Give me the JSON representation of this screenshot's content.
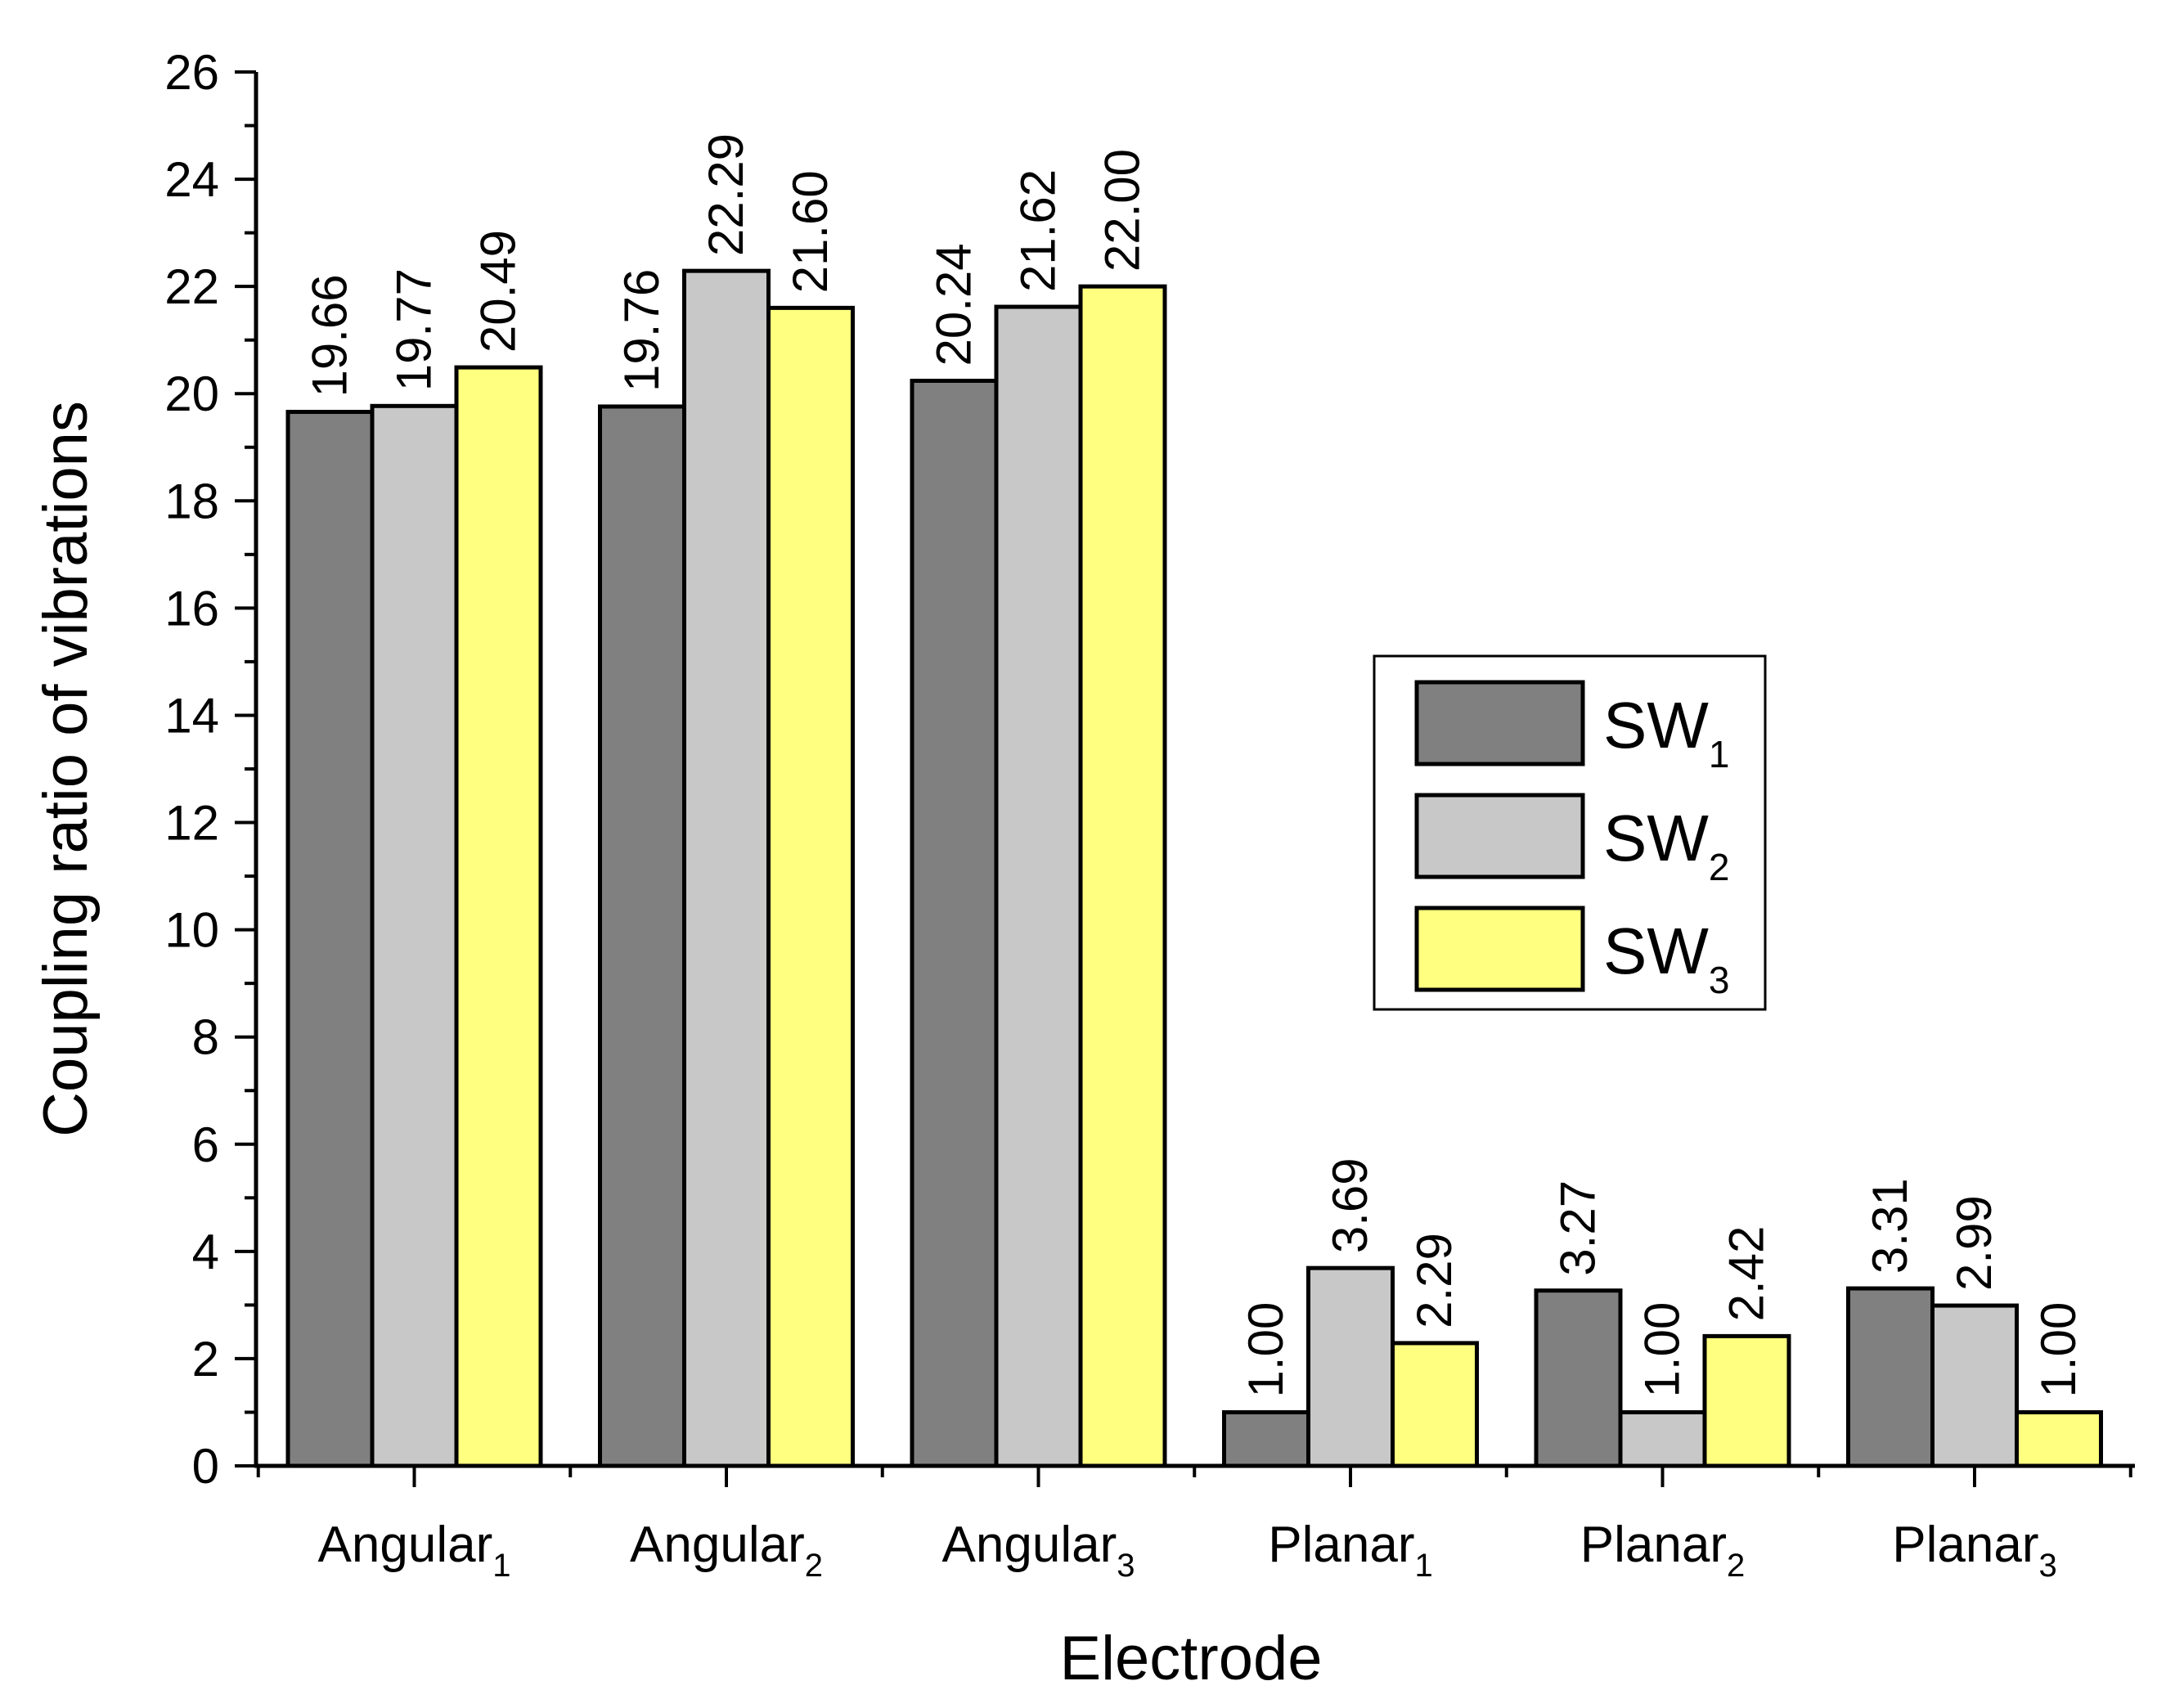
{
  "chart_data": {
    "type": "bar",
    "xlabel": "Electrode",
    "ylabel": "Coupling ratio of vibrations",
    "ylim": [
      0,
      26
    ],
    "ytick_step": 2,
    "ytick_labels": [
      "0",
      "2",
      "4",
      "6",
      "8",
      "10",
      "12",
      "14",
      "16",
      "18",
      "20",
      "22",
      "24",
      "26"
    ],
    "categories": [
      {
        "base": "Angular",
        "sub": "1"
      },
      {
        "base": "Angular",
        "sub": "2"
      },
      {
        "base": "Angular",
        "sub": "3"
      },
      {
        "base": "Planar",
        "sub": "1"
      },
      {
        "base": "Planar",
        "sub": "2"
      },
      {
        "base": "Planar",
        "sub": "3"
      }
    ],
    "series": [
      {
        "name": "SW",
        "sub": "1",
        "color": "#808080",
        "values": [
          19.66,
          19.76,
          20.24,
          1.0,
          3.27,
          3.31
        ],
        "labels": [
          "19.66",
          "19.76",
          "20.24",
          "1.00",
          "3.27",
          "3.31"
        ]
      },
      {
        "name": "SW",
        "sub": "2",
        "color": "#c8c8c8",
        "values": [
          19.77,
          22.29,
          21.62,
          3.69,
          1.0,
          2.99
        ],
        "labels": [
          "19.77",
          "22.29",
          "21.62",
          "3.69",
          "1.00",
          "2.99"
        ]
      },
      {
        "name": "SW",
        "sub": "3",
        "color": "#ffff80",
        "values": [
          20.49,
          21.6,
          22.0,
          2.29,
          2.42,
          1.0
        ],
        "labels": [
          "20.49",
          "21.60",
          "22.00",
          "2.29",
          "2.42",
          "1.00"
        ]
      }
    ],
    "legend_position": "center-right",
    "grid": false
  }
}
